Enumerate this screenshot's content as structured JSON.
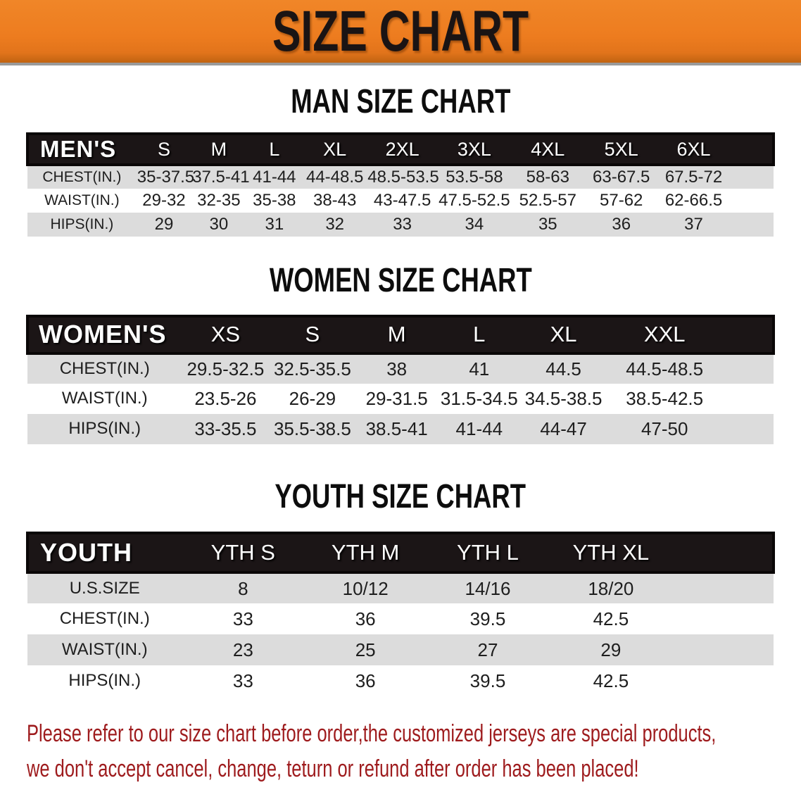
{
  "banner": {
    "title": "SIZE CHART"
  },
  "sections": [
    {
      "heading": "MAN SIZE CHART",
      "table": {
        "header_label": "MEN'S",
        "columns": [
          "S",
          "M",
          "L",
          "XL",
          "2XL",
          "3XL",
          "4XL",
          "5XL",
          "6XL"
        ],
        "rows": [
          {
            "label": "CHEST(IN.)",
            "values": [
              "35-37.5",
              "37.5-41",
              "41-44",
              "44-48.5",
              "48.5-53.5",
              "53.5-58",
              "58-63",
              "63-67.5",
              "67.5-72"
            ]
          },
          {
            "label": "WAIST(IN.)",
            "values": [
              "29-32",
              "32-35",
              "35-38",
              "38-43",
              "43-47.5",
              "47.5-52.5",
              "52.5-57",
              "57-62",
              "62-66.5"
            ]
          },
          {
            "label": "HIPS(IN.)",
            "values": [
              "29",
              "30",
              "31",
              "32",
              "33",
              "34",
              "35",
              "36",
              "37"
            ]
          }
        ]
      }
    },
    {
      "heading": "WOMEN SIZE CHART",
      "table": {
        "header_label": "WOMEN'S",
        "columns": [
          "XS",
          "S",
          "M",
          "L",
          "XL",
          "XXL"
        ],
        "rows": [
          {
            "label": "CHEST(IN.)",
            "values": [
              "29.5-32.5",
              "32.5-35.5",
              "38",
              "41",
              "44.5",
              "44.5-48.5"
            ]
          },
          {
            "label": "WAIST(IN.)",
            "values": [
              "23.5-26",
              "26-29",
              "29-31.5",
              "31.5-34.5",
              "34.5-38.5",
              "38.5-42.5"
            ]
          },
          {
            "label": "HIPS(IN.)",
            "values": [
              "33-35.5",
              "35.5-38.5",
              "38.5-41",
              "41-44",
              "44-47",
              "47-50"
            ]
          }
        ]
      }
    },
    {
      "heading": "YOUTH SIZE CHART",
      "table": {
        "header_label": "YOUTH",
        "columns": [
          "YTH S",
          "YTH M",
          "YTH L",
          "YTH XL"
        ],
        "rows": [
          {
            "label": "U.S.SIZE",
            "values": [
              "8",
              "10/12",
              "14/16",
              "18/20"
            ]
          },
          {
            "label": "CHEST(IN.)",
            "values": [
              "33",
              "36",
              "39.5",
              "42.5"
            ]
          },
          {
            "label": "WAIST(IN.)",
            "values": [
              "23",
              "25",
              "27",
              "29"
            ]
          },
          {
            "label": "HIPS(IN.)",
            "values": [
              "33",
              "36",
              "39.5",
              "42.5"
            ]
          }
        ]
      }
    }
  ],
  "disclaimer": {
    "lines": [
      "Please refer to our size chart before order,the customized jerseys are special products,",
      "we don't accept cancel, change, teturn or refund after order has been placed!"
    ]
  },
  "colors": {
    "banner_orange": "#ed7c1f",
    "header_bar_black": "#1b1516",
    "row_gray": "#dcdcdc",
    "disclaimer_red": "#9e1b1d"
  }
}
